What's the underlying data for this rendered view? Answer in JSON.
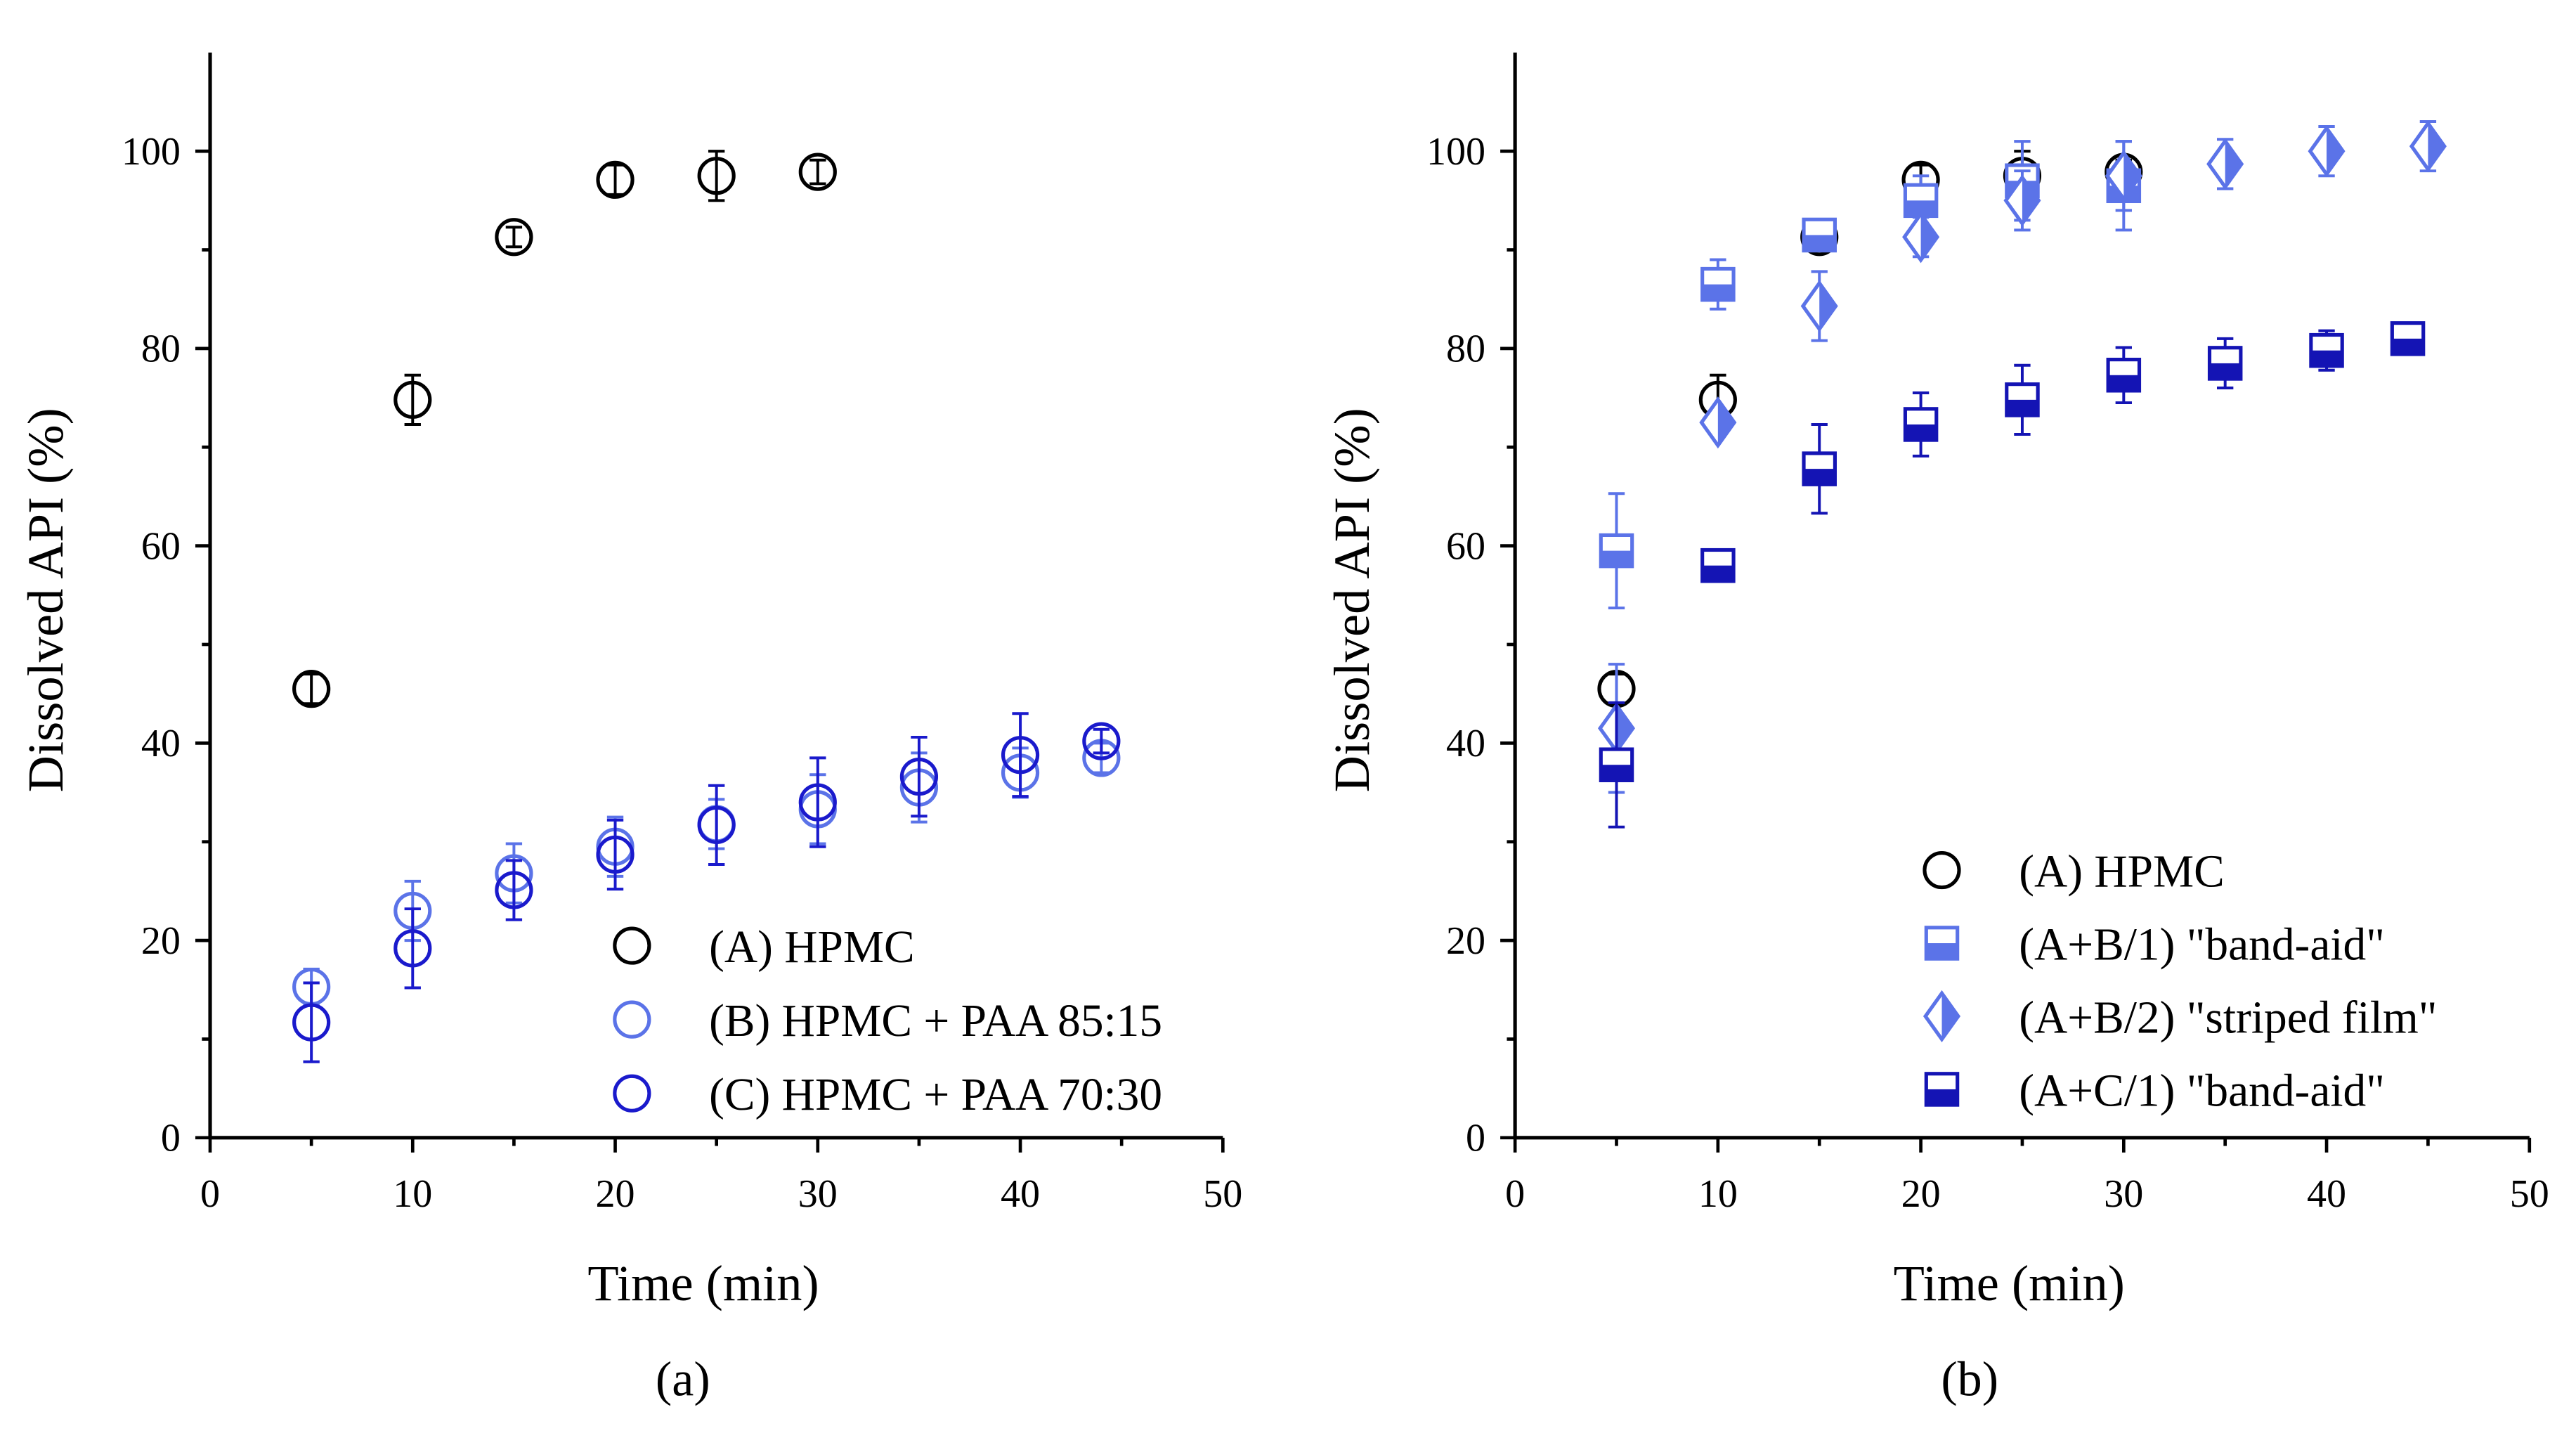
{
  "chart_data": [
    {
      "panel_label": "(a)",
      "type": "scatter",
      "xlabel": "Time (min)",
      "ylabel": "Dissolved API (%)",
      "xlim": [
        0,
        50
      ],
      "ylim": [
        0,
        110
      ],
      "xticks": [
        0,
        10,
        20,
        30,
        40,
        50
      ],
      "yticks": [
        0,
        20,
        40,
        60,
        80,
        100
      ],
      "grid": false,
      "legend_position": "bottom-right",
      "series": [
        {
          "name": "(A) HPMC",
          "marker": "circle-open",
          "color": "#000000",
          "x": [
            5,
            10,
            15,
            20,
            25,
            30
          ],
          "y": [
            45.5,
            74.8,
            91.3,
            97.1,
            97.5,
            97.9
          ],
          "err": [
            1.5,
            2.5,
            1.0,
            1.5,
            2.5,
            1.2
          ]
        },
        {
          "name": "(B) HPMC + PAA 85:15",
          "marker": "circle-open",
          "color": "#5B73E8",
          "x": [
            5,
            10,
            15,
            20,
            25,
            30,
            35,
            40,
            44
          ],
          "y": [
            15.3,
            23.0,
            26.8,
            29.5,
            31.8,
            33.3,
            35.5,
            37.0,
            38.5
          ],
          "err": [
            1.8,
            3.0,
            3.0,
            3.0,
            2.5,
            3.5,
            3.5,
            2.5,
            1.5
          ]
        },
        {
          "name": "(C) HPMC + PAA 70:30",
          "marker": "circle-open",
          "color": "#1A1ACC",
          "x": [
            5,
            10,
            15,
            20,
            25,
            30,
            35,
            40,
            44
          ],
          "y": [
            11.7,
            19.2,
            25.1,
            28.7,
            31.7,
            34.0,
            36.6,
            38.8,
            40.2
          ],
          "err": [
            4.0,
            4.0,
            3.0,
            3.5,
            4.0,
            4.5,
            4.0,
            4.2,
            1.2
          ]
        }
      ]
    },
    {
      "panel_label": "(b)",
      "type": "scatter",
      "xlabel": "Time (min)",
      "ylabel": "Dissolved API (%)",
      "xlim": [
        0,
        50
      ],
      "ylim": [
        0,
        110
      ],
      "xticks": [
        0,
        10,
        20,
        30,
        40,
        50
      ],
      "yticks": [
        0,
        20,
        40,
        60,
        80,
        100
      ],
      "grid": false,
      "legend_position": "bottom-right",
      "series": [
        {
          "name": "(A) HPMC",
          "marker": "circle-open",
          "color": "#000000",
          "x": [
            5,
            10,
            15,
            20,
            25,
            30
          ],
          "y": [
            45.5,
            74.8,
            91.3,
            97.1,
            97.5,
            97.9
          ],
          "err": [
            1.5,
            2.5,
            1.0,
            1.5,
            2.5,
            1.2
          ]
        },
        {
          "name": "(A+B/1) \"band-aid\"",
          "marker": "square-half",
          "color": "#5B73E8",
          "x": [
            5,
            10,
            15,
            20,
            25,
            30
          ],
          "y": [
            59.5,
            86.5,
            91.5,
            95.0,
            97.0,
            96.5
          ],
          "err": [
            5.8,
            2.5,
            1.0,
            2.5,
            4.0,
            4.5
          ]
        },
        {
          "name": "(A+B/2) \"striped film\"",
          "marker": "diamond-half",
          "color": "#5B73E8",
          "x": [
            5,
            10,
            15,
            20,
            25,
            30,
            35,
            40,
            45
          ],
          "y": [
            41.5,
            72.5,
            84.3,
            91.3,
            95.0,
            97.5,
            98.7,
            100.0,
            100.5
          ],
          "err": [
            6.5,
            1.0,
            3.5,
            2.0,
            3.0,
            3.5,
            2.5,
            2.5,
            2.5
          ]
        },
        {
          "name": "(A+C/1) \"band-aid\"",
          "marker": "square-half",
          "color": "#1414B4",
          "x": [
            5,
            10,
            15,
            20,
            25,
            30,
            35,
            40,
            44
          ],
          "y": [
            37.8,
            58.0,
            67.8,
            72.3,
            74.8,
            77.3,
            78.5,
            79.8,
            81.0
          ],
          "err": [
            6.3,
            1.0,
            4.5,
            3.2,
            3.5,
            2.8,
            2.5,
            2.0,
            1.2
          ]
        }
      ]
    }
  ]
}
